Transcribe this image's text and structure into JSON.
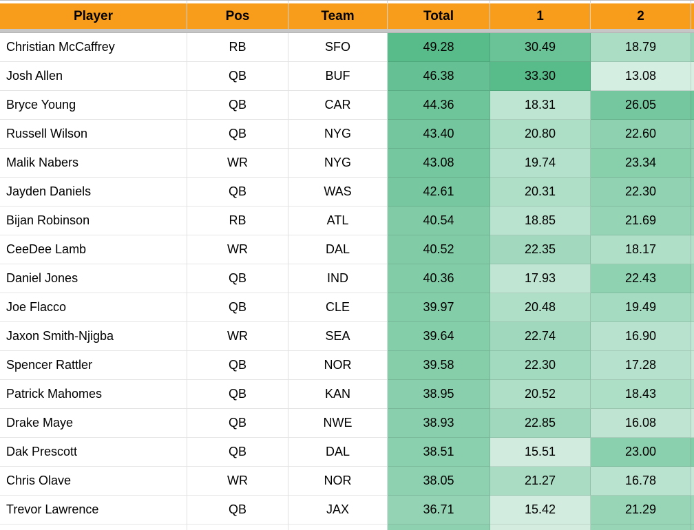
{
  "palette": {
    "header_bg": "#f89c1c",
    "scale_max_green": "#57bb8a",
    "freeze_bar": "#c6c6c6",
    "gridline": "#e0e0e0"
  },
  "header": {
    "columns": [
      {
        "label": "Player"
      },
      {
        "label": "Pos"
      },
      {
        "label": "Team"
      },
      {
        "label": "Total"
      },
      {
        "label": "1"
      },
      {
        "label": "2"
      }
    ]
  },
  "table": {
    "rows": [
      {
        "player": "Christian McCaffrey",
        "pos": "RB",
        "team": "SFO",
        "total": "49.28",
        "g1": "30.49",
        "g2": "18.79",
        "total_bg": "#57bb8a",
        "g1_bg": "#6ac397",
        "g2_bg": "#aaddc4",
        "edge_bg": "#9bd6b8"
      },
      {
        "player": "Josh Allen",
        "pos": "QB",
        "team": "BUF",
        "total": "46.38",
        "g1": "33.30",
        "g2": "13.08",
        "total_bg": "#65c194",
        "g1_bg": "#57bb8a",
        "g2_bg": "#d5eee2",
        "edge_bg": "#d8eee3"
      },
      {
        "player": "Bryce Young",
        "pos": "QB",
        "team": "CAR",
        "total": "44.36",
        "g1": "18.31",
        "g2": "26.05",
        "total_bg": "#6fc59a",
        "g1_bg": "#bee5d2",
        "g2_bg": "#74c79e",
        "edge_bg": "#6ec59a"
      },
      {
        "player": "Russell Wilson",
        "pos": "QB",
        "team": "NYG",
        "total": "43.40",
        "g1": "20.80",
        "g2": "22.60",
        "total_bg": "#73c69e",
        "g1_bg": "#addec6",
        "g2_bg": "#8ed1b0",
        "edge_bg": "#92d3b3"
      },
      {
        "player": "Malik Nabers",
        "pos": "WR",
        "team": "NYG",
        "total": "43.08",
        "g1": "19.74",
        "g2": "23.34",
        "total_bg": "#75c79f",
        "g1_bg": "#b4e1cb",
        "g2_bg": "#88cfac",
        "edge_bg": "#94d3b4"
      },
      {
        "player": "Jayden Daniels",
        "pos": "QB",
        "team": "WAS",
        "total": "42.61",
        "g1": "20.31",
        "g2": "22.30",
        "total_bg": "#77c8a0",
        "g1_bg": "#b0dfc8",
        "g2_bg": "#90d2b2",
        "edge_bg": "#90d2b2"
      },
      {
        "player": "Bijan Robinson",
        "pos": "RB",
        "team": "ATL",
        "total": "40.54",
        "g1": "18.85",
        "g2": "21.69",
        "total_bg": "#81cca7",
        "g1_bg": "#bae3cf",
        "g2_bg": "#95d4b5",
        "edge_bg": "#98d5b7"
      },
      {
        "player": "CeeDee Lamb",
        "pos": "WR",
        "team": "DAL",
        "total": "40.52",
        "g1": "22.35",
        "g2": "18.17",
        "total_bg": "#81cca7",
        "g1_bg": "#a2d9be",
        "g2_bg": "#afdfc7",
        "edge_bg": "#b2e0c9"
      },
      {
        "player": "Daniel Jones",
        "pos": "QB",
        "team": "IND",
        "total": "40.36",
        "g1": "17.93",
        "g2": "22.43",
        "total_bg": "#82cca8",
        "g1_bg": "#c0e6d3",
        "g2_bg": "#8fd2b1",
        "edge_bg": "#9ed8bb"
      },
      {
        "player": "Joe Flacco",
        "pos": "QB",
        "team": "CLE",
        "total": "39.97",
        "g1": "20.48",
        "g2": "19.49",
        "total_bg": "#84cda9",
        "g1_bg": "#afdfc7",
        "g2_bg": "#a5dbc0",
        "edge_bg": "#aedec6"
      },
      {
        "player": "Jaxon Smith-Njigba",
        "pos": "WR",
        "team": "SEA",
        "total": "39.64",
        "g1": "22.74",
        "g2": "16.90",
        "total_bg": "#85ceaa",
        "g1_bg": "#9fd8bc",
        "g2_bg": "#b8e2ce",
        "edge_bg": "#c3e7d5"
      },
      {
        "player": "Spencer Rattler",
        "pos": "QB",
        "team": "NOR",
        "total": "39.58",
        "g1": "22.30",
        "g2": "17.28",
        "total_bg": "#86ceaa",
        "g1_bg": "#a2dabf",
        "g2_bg": "#b6e1cc",
        "edge_bg": "#c9e9d8"
      },
      {
        "player": "Patrick Mahomes",
        "pos": "QB",
        "team": "KAN",
        "total": "38.95",
        "g1": "20.52",
        "g2": "18.43",
        "total_bg": "#89cfad",
        "g1_bg": "#afdfc7",
        "g2_bg": "#addec6",
        "edge_bg": "#b5e1cb"
      },
      {
        "player": "Drake Maye",
        "pos": "QB",
        "team": "NWE",
        "total": "38.93",
        "g1": "22.85",
        "g2": "16.08",
        "total_bg": "#89cfad",
        "g1_bg": "#9fd8bc",
        "g2_bg": "#bfe5d2",
        "edge_bg": "#cde9da"
      },
      {
        "player": "Dak Prescott",
        "pos": "QB",
        "team": "DAL",
        "total": "38.51",
        "g1": "15.51",
        "g2": "23.00",
        "total_bg": "#8bd0ae",
        "g1_bg": "#d1ecdf",
        "g2_bg": "#8bd0ae",
        "edge_bg": "#85ceaa"
      },
      {
        "player": "Chris Olave",
        "pos": "WR",
        "team": "NOR",
        "total": "38.05",
        "g1": "21.27",
        "g2": "16.78",
        "total_bg": "#8dd1b0",
        "g1_bg": "#a9dcc3",
        "g2_bg": "#b9e3cf",
        "edge_bg": "#c6e8d6"
      },
      {
        "player": "Trevor Lawrence",
        "pos": "QB",
        "team": "JAX",
        "total": "36.71",
        "g1": "15.42",
        "g2": "21.29",
        "total_bg": "#94d3b4",
        "g1_bg": "#d2eddf",
        "g2_bg": "#98d5b7",
        "edge_bg": "#9dd7ba"
      }
    ],
    "partial_row": {
      "total_bg": "#8ed1b0",
      "g1_bg": "#d3ecdf",
      "g2_bg": "#97d5b6",
      "edge_bg": "#97d5b6"
    }
  }
}
